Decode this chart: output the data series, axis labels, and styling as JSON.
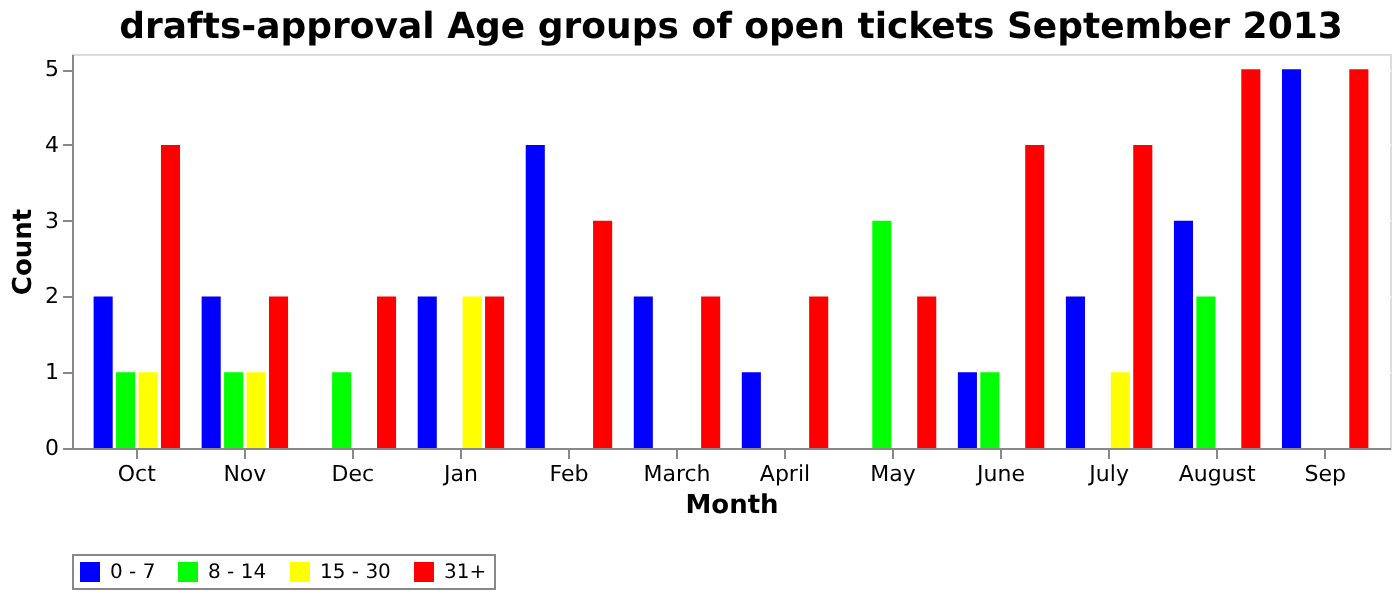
{
  "chart_data": {
    "type": "bar",
    "title": "drafts-approval Age groups of open tickets September 2013",
    "xlabel": "Month",
    "ylabel": "Count",
    "categories": [
      "Oct",
      "Nov",
      "Dec",
      "Jan",
      "Feb",
      "March",
      "April",
      "May",
      "June",
      "July",
      "August",
      "Sep"
    ],
    "series": [
      {
        "name": "0 - 7",
        "color": "#0000ff",
        "values": [
          2,
          2,
          0,
          2,
          4,
          2,
          1,
          0,
          1,
          2,
          3,
          5
        ]
      },
      {
        "name": "8 - 14",
        "color": "#00ff00",
        "values": [
          1,
          1,
          1,
          0,
          0,
          0,
          0,
          3,
          1,
          0,
          2,
          0
        ]
      },
      {
        "name": "15 - 30",
        "color": "#ffff00",
        "values": [
          1,
          1,
          0,
          2,
          0,
          0,
          0,
          0,
          0,
          1,
          0,
          0
        ]
      },
      {
        "name": "31+",
        "color": "#ff0000",
        "values": [
          4,
          2,
          2,
          2,
          3,
          2,
          2,
          2,
          4,
          4,
          5,
          5
        ]
      }
    ],
    "ylim": [
      0,
      5.2
    ],
    "yticks": [
      0,
      1,
      2,
      3,
      4,
      5
    ],
    "grid": "y",
    "legend": "bottom"
  }
}
